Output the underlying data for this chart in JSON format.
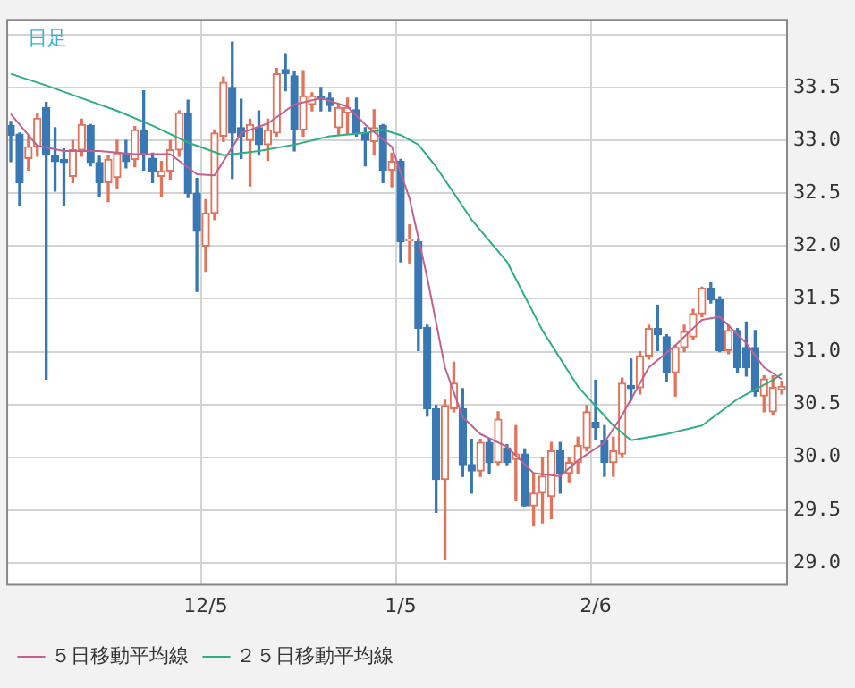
{
  "chart_data": {
    "type": "candlestick",
    "title": "日足",
    "categories": [
      null,
      null,
      null,
      null,
      null,
      null,
      null,
      null,
      null,
      null,
      null,
      null,
      null,
      null,
      null,
      null,
      null,
      null,
      null,
      null,
      null,
      null,
      "12/5",
      null,
      null,
      null,
      null,
      null,
      null,
      null,
      null,
      null,
      null,
      null,
      null,
      null,
      null,
      null,
      null,
      null,
      null,
      null,
      null,
      null,
      "1/5",
      null,
      null,
      null,
      null,
      null,
      null,
      null,
      null,
      null,
      null,
      null,
      null,
      null,
      null,
      null,
      null,
      null,
      null,
      null,
      null,
      null,
      "2/6",
      null,
      null,
      null,
      null,
      null,
      null,
      null,
      null,
      null,
      null,
      null,
      null,
      null,
      null,
      null,
      null,
      null,
      null,
      null,
      null,
      null
    ],
    "ohlc": [
      [
        33.14,
        33.18,
        32.8,
        33.05
      ],
      [
        33.06,
        33.07,
        32.39,
        32.6
      ],
      [
        32.83,
        33.04,
        32.72,
        32.94
      ],
      [
        32.94,
        33.25,
        32.85,
        33.21
      ],
      [
        33.31,
        33.36,
        30.74,
        32.86
      ],
      [
        32.86,
        33.12,
        32.52,
        32.8
      ],
      [
        32.82,
        32.92,
        32.39,
        32.79
      ],
      [
        32.66,
        33.0,
        32.6,
        32.91
      ],
      [
        32.91,
        33.2,
        32.85,
        33.15
      ],
      [
        33.14,
        33.15,
        32.76,
        32.79
      ],
      [
        32.79,
        32.85,
        32.47,
        32.6
      ],
      [
        32.6,
        32.86,
        32.42,
        32.82
      ],
      [
        32.65,
        33.0,
        32.55,
        32.88
      ],
      [
        32.88,
        33.0,
        32.74,
        32.8
      ],
      [
        32.82,
        33.13,
        32.75,
        33.1
      ],
      [
        33.1,
        33.47,
        32.72,
        32.86
      ],
      [
        32.83,
        32.88,
        32.6,
        32.71
      ],
      [
        32.66,
        32.8,
        32.47,
        32.71
      ],
      [
        32.71,
        33.0,
        32.63,
        32.91
      ],
      [
        32.91,
        33.28,
        32.85,
        33.26
      ],
      [
        33.26,
        33.38,
        32.46,
        32.5
      ],
      [
        32.5,
        32.64,
        31.57,
        32.14
      ],
      [
        32.0,
        32.44,
        31.76,
        32.31
      ],
      [
        32.31,
        33.1,
        32.25,
        33.07
      ],
      [
        33.04,
        33.6,
        32.99,
        33.55
      ],
      [
        33.5,
        33.93,
        32.64,
        33.07
      ],
      [
        33.12,
        33.39,
        32.83,
        33.04
      ],
      [
        33.0,
        33.2,
        32.57,
        33.15
      ],
      [
        33.12,
        33.28,
        32.86,
        32.96
      ],
      [
        32.96,
        33.2,
        32.81,
        33.1
      ],
      [
        33.07,
        33.68,
        33.04,
        33.63
      ],
      [
        33.67,
        33.82,
        33.47,
        33.63
      ],
      [
        33.61,
        33.65,
        32.9,
        33.1
      ],
      [
        33.1,
        33.66,
        33.04,
        33.42
      ],
      [
        33.34,
        33.45,
        33.28,
        33.42
      ],
      [
        33.42,
        33.5,
        33.28,
        33.39
      ],
      [
        33.4,
        33.45,
        33.28,
        33.33
      ],
      [
        33.12,
        33.34,
        33.06,
        33.31
      ],
      [
        33.26,
        33.4,
        33.06,
        33.31
      ],
      [
        33.29,
        33.4,
        33.04,
        33.07
      ],
      [
        33.07,
        33.12,
        32.76,
        33.0
      ],
      [
        32.99,
        33.29,
        32.86,
        33.12
      ],
      [
        33.14,
        33.15,
        32.6,
        32.72
      ],
      [
        32.72,
        32.88,
        32.56,
        32.8
      ],
      [
        32.8,
        32.82,
        31.85,
        32.04
      ],
      [
        32.05,
        32.2,
        31.84,
        32.06
      ],
      [
        32.04,
        32.07,
        31.01,
        31.22
      ],
      [
        31.23,
        31.25,
        30.39,
        30.46
      ],
      [
        30.46,
        30.49,
        29.48,
        29.79
      ],
      [
        29.79,
        30.54,
        29.03,
        30.49
      ],
      [
        30.46,
        30.9,
        30.43,
        30.7
      ],
      [
        30.46,
        30.65,
        29.82,
        29.93
      ],
      [
        29.93,
        30.17,
        29.66,
        29.87
      ],
      [
        29.87,
        30.17,
        29.82,
        30.14
      ],
      [
        30.14,
        30.17,
        29.85,
        29.95
      ],
      [
        29.95,
        30.43,
        29.93,
        30.36
      ],
      [
        30.09,
        30.12,
        29.93,
        29.95
      ],
      [
        29.98,
        30.3,
        29.59,
        30.03
      ],
      [
        30.03,
        30.08,
        29.54,
        29.54
      ],
      [
        29.54,
        29.85,
        29.35,
        29.66
      ],
      [
        29.66,
        30.0,
        29.38,
        29.82
      ],
      [
        29.63,
        30.14,
        29.42,
        30.06
      ],
      [
        30.06,
        30.14,
        29.66,
        29.85
      ],
      [
        29.85,
        30.0,
        29.76,
        29.95
      ],
      [
        29.95,
        30.19,
        29.85,
        30.11
      ],
      [
        30.09,
        30.49,
        30.06,
        30.43
      ],
      [
        30.33,
        30.73,
        30.17,
        30.28
      ],
      [
        30.16,
        30.3,
        29.82,
        29.95
      ],
      [
        29.95,
        30.19,
        29.82,
        30.06
      ],
      [
        30.03,
        30.75,
        30.0,
        30.7
      ],
      [
        30.68,
        30.93,
        30.54,
        30.65
      ],
      [
        30.66,
        31.0,
        30.6,
        30.96
      ],
      [
        30.96,
        31.25,
        30.93,
        31.22
      ],
      [
        31.22,
        31.44,
        31.01,
        31.16
      ],
      [
        31.14,
        31.16,
        30.72,
        30.8
      ],
      [
        30.8,
        31.06,
        30.58,
        31.04
      ],
      [
        31.04,
        31.25,
        31.0,
        31.19
      ],
      [
        31.14,
        31.4,
        31.12,
        31.36
      ],
      [
        31.36,
        31.61,
        31.33,
        31.6
      ],
      [
        31.6,
        31.65,
        31.46,
        31.49
      ],
      [
        31.49,
        31.52,
        31.0,
        31.01
      ],
      [
        31.01,
        31.25,
        30.98,
        31.2
      ],
      [
        31.2,
        31.22,
        30.8,
        30.85
      ],
      [
        31.04,
        31.28,
        30.77,
        30.85
      ],
      [
        31.04,
        31.2,
        30.58,
        30.62
      ],
      [
        30.58,
        30.77,
        30.43,
        30.74
      ],
      [
        30.43,
        30.77,
        30.41,
        30.66
      ],
      [
        30.64,
        30.72,
        30.6,
        30.67
      ]
    ],
    "colors": [
      "#3a78b4",
      "#3a78b4",
      "#e2745c",
      "#e2745c",
      "#3a78b4",
      "#3a78b4",
      "#3a78b4",
      "#e2745c",
      "#e2745c",
      "#3a78b4",
      "#3a78b4",
      "#e2745c",
      "#e2745c",
      "#3a78b4",
      "#e2745c",
      "#3a78b4",
      "#3a78b4",
      "#e2745c",
      "#e2745c",
      "#e2745c",
      "#3a78b4",
      "#3a78b4",
      "#e2745c",
      "#e2745c",
      "#e2745c",
      "#3a78b4",
      "#3a78b4",
      "#e2745c",
      "#3a78b4",
      "#e2745c",
      "#e2745c",
      "#3a78b4",
      "#3a78b4",
      "#e2745c",
      "#e2745c",
      "#3a78b4",
      "#3a78b4",
      "#e2745c",
      "#e2745c",
      "#3a78b4",
      "#3a78b4",
      "#e2745c",
      "#3a78b4",
      "#e2745c",
      "#3a78b4",
      "#e2745c",
      "#3a78b4",
      "#3a78b4",
      "#3a78b4",
      "#e2745c",
      "#e2745c",
      "#3a78b4",
      "#3a78b4",
      "#e2745c",
      "#3a78b4",
      "#e2745c",
      "#3a78b4",
      "#e2745c",
      "#3a78b4",
      "#e2745c",
      "#e2745c",
      "#e2745c",
      "#3a78b4",
      "#e2745c",
      "#e2745c",
      "#e2745c",
      "#3a78b4",
      "#3a78b4",
      "#e2745c",
      "#e2745c",
      "#3a78b4",
      "#e2745c",
      "#e2745c",
      "#3a78b4",
      "#3a78b4",
      "#e2745c",
      "#e2745c",
      "#e2745c",
      "#e2745c",
      "#3a78b4",
      "#3a78b4",
      "#e2745c",
      "#3a78b4",
      "#3a78b4",
      "#3a78b4",
      "#e2745c",
      "#e2745c",
      "#e2745c"
    ],
    "series": [
      {
        "type": "line",
        "name": "５日移動平均線",
        "color": "#c2608e",
        "values": [
          33.25,
          null,
          null,
          32.95,
          null,
          null,
          32.9,
          null,
          null,
          null,
          32.9,
          null,
          null,
          null,
          32.87,
          null,
          null,
          null,
          32.87,
          null,
          null,
          32.68,
          null,
          32.67,
          null,
          null,
          33.07,
          null,
          null,
          33.16,
          null,
          null,
          33.34,
          null,
          null,
          33.4,
          null,
          null,
          33.32,
          null,
          33.15,
          null,
          null,
          32.94,
          null,
          32.45,
          null,
          31.7,
          null,
          30.85,
          null,
          30.38,
          null,
          30.22,
          null,
          null,
          30.1,
          null,
          null,
          29.85,
          null,
          null,
          29.82,
          null,
          29.97,
          null,
          null,
          30.14,
          null,
          30.4,
          null,
          null,
          30.85,
          null,
          null,
          31.06,
          null,
          null,
          31.3,
          null,
          31.33,
          null,
          null,
          31.08,
          null,
          30.85,
          null,
          30.74
        ]
      },
      {
        "type": "line",
        "name": "２５日移動平均線",
        "color": "#2fae7e",
        "values": [
          33.63,
          null,
          null,
          null,
          33.52,
          null,
          null,
          null,
          33.4,
          null,
          null,
          null,
          33.28,
          null,
          null,
          null,
          33.14,
          null,
          null,
          null,
          32.98,
          null,
          null,
          null,
          32.86,
          null,
          null,
          null,
          32.9,
          null,
          null,
          null,
          32.96,
          null,
          null,
          null,
          33.04,
          null,
          null,
          null,
          33.07,
          null,
          33.1,
          null,
          33.05,
          null,
          32.96,
          null,
          32.75,
          null,
          null,
          null,
          32.25,
          null,
          null,
          null,
          31.85,
          null,
          null,
          null,
          31.2,
          null,
          null,
          null,
          30.67,
          null,
          null,
          null,
          30.3,
          null,
          30.16,
          null,
          null,
          null,
          30.22,
          null,
          null,
          null,
          30.3,
          null,
          null,
          null,
          30.55,
          null,
          null,
          null,
          30.73,
          30.79
        ]
      }
    ],
    "ylim": [
      28.8,
      34.15
    ],
    "yticks": [
      {
        "value": 29,
        "label": "29.0"
      },
      29.5,
      {
        "value": 30,
        "label": "30.0"
      },
      30.5,
      {
        "value": 31,
        "label": "31.0"
      },
      31.5,
      {
        "value": 32,
        "label": "32.0"
      },
      32.5,
      {
        "value": 33,
        "label": "33.0"
      },
      33.5,
      {
        "value": 34,
        "label": null
      }
    ],
    "grid": true,
    "legend": "bottom left",
    "marker": "none"
  }
}
